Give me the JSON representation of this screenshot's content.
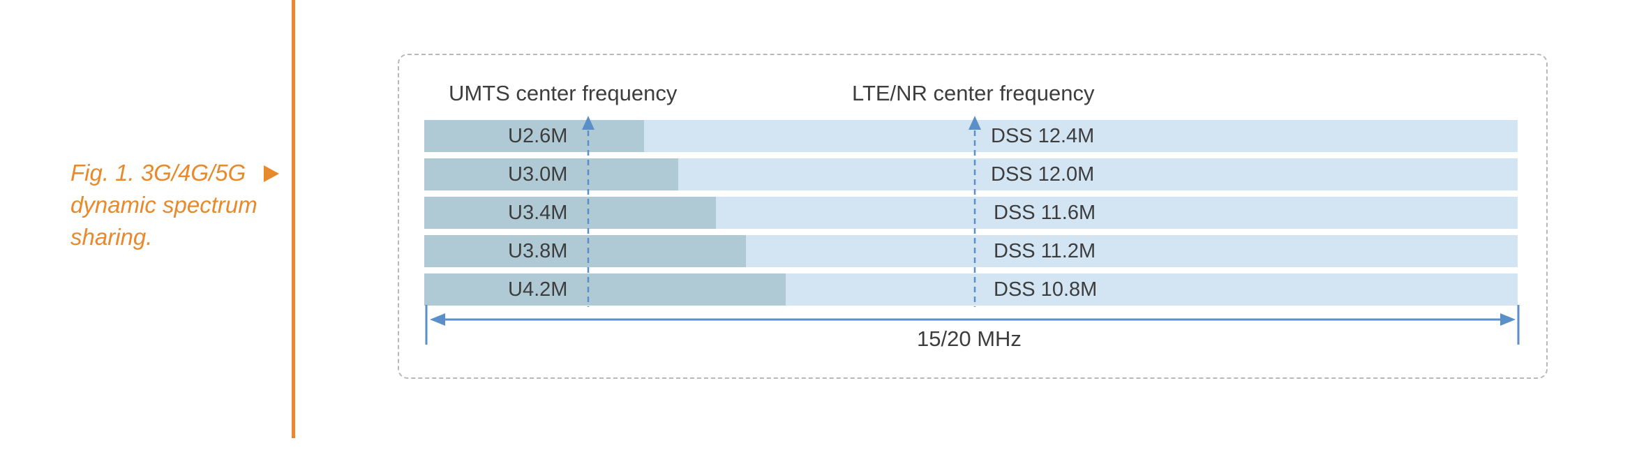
{
  "caption": {
    "line1": "Fig. 1. 3G/4G/5G",
    "line2": "dynamic spectrum",
    "line3": "sharing."
  },
  "labels": {
    "umts_center": "UMTS center frequency",
    "lte_nr_center": "LTE/NR center frequency",
    "bandwidth": "15/20 MHz"
  },
  "rows": [
    {
      "umts": "U2.6M",
      "dss": "DSS 12.4M",
      "umts_mhz": 2.6,
      "dss_mhz": 12.4
    },
    {
      "umts": "U3.0M",
      "dss": "DSS 12.0M",
      "umts_mhz": 3.0,
      "dss_mhz": 12.0
    },
    {
      "umts": "U3.4M",
      "dss": "DSS 11.6M",
      "umts_mhz": 3.4,
      "dss_mhz": 11.6
    },
    {
      "umts": "U3.8M",
      "dss": "DSS 11.2M",
      "umts_mhz": 3.8,
      "dss_mhz": 11.2
    },
    {
      "umts": "U4.2M",
      "dss": "DSS 10.8M",
      "umts_mhz": 4.2,
      "dss_mhz": 10.8
    }
  ],
  "colors": {
    "accent": "#E8892B",
    "umts_segment": "#AFCAD5",
    "dss_segment": "#D3E5F3",
    "arrow": "#5A8FC8",
    "frame_border": "#B8B8B8"
  }
}
